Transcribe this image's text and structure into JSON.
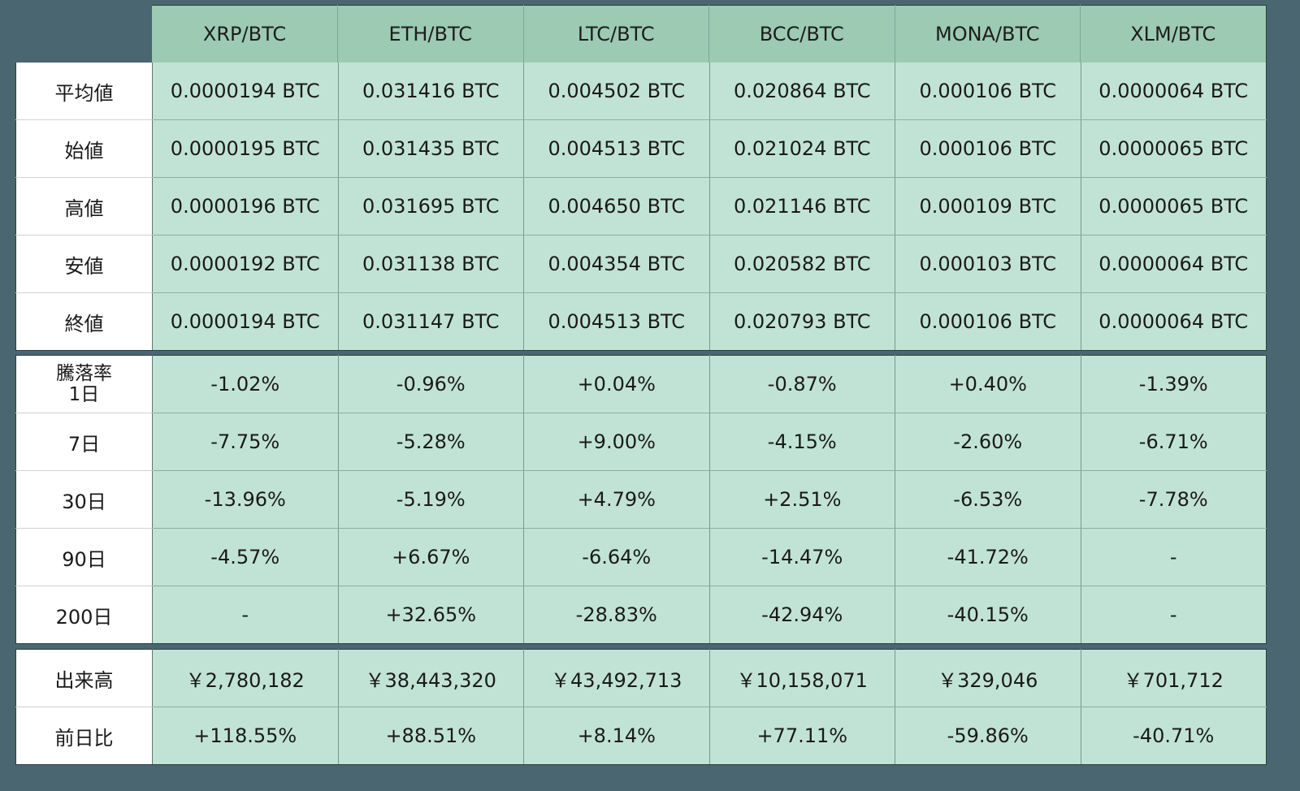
{
  "columns": [
    "XRP/BTC",
    "ETH/BTC",
    "LTC/BTC",
    "BCC/BTC",
    "MONA/BTC",
    "XLM/BTC"
  ],
  "colors": {
    "background": "#4a6670",
    "header_bg": "#9ccab3",
    "cell_bg": "#c1e3d6",
    "label_bg": "#ffffff"
  },
  "ohlc": {
    "rows": [
      {
        "label": "平均値",
        "values": [
          "0.0000194 BTC",
          "0.031416 BTC",
          "0.004502 BTC",
          "0.020864 BTC",
          "0.000106 BTC",
          "0.0000064 BTC"
        ]
      },
      {
        "label": "始値",
        "values": [
          "0.0000195 BTC",
          "0.031435 BTC",
          "0.004513 BTC",
          "0.021024 BTC",
          "0.000106 BTC",
          "0.0000065 BTC"
        ]
      },
      {
        "label": "高値",
        "values": [
          "0.0000196 BTC",
          "0.031695 BTC",
          "0.004650 BTC",
          "0.021146 BTC",
          "0.000109 BTC",
          "0.0000065 BTC"
        ]
      },
      {
        "label": "安値",
        "values": [
          "0.0000192 BTC",
          "0.031138 BTC",
          "0.004354 BTC",
          "0.020582 BTC",
          "0.000103 BTC",
          "0.0000064 BTC"
        ]
      },
      {
        "label": "終値",
        "values": [
          "0.0000194 BTC",
          "0.031147 BTC",
          "0.004513 BTC",
          "0.020793 BTC",
          "0.000106 BTC",
          "0.0000064 BTC"
        ]
      }
    ]
  },
  "change": {
    "title": "騰落率",
    "rows": [
      {
        "label": "1日",
        "values": [
          "-1.02%",
          "-0.96%",
          "+0.04%",
          "-0.87%",
          "+0.40%",
          "-1.39%"
        ]
      },
      {
        "label": "7日",
        "values": [
          "-7.75%",
          "-5.28%",
          "+9.00%",
          "-4.15%",
          "-2.60%",
          "-6.71%"
        ]
      },
      {
        "label": "30日",
        "values": [
          "-13.96%",
          "-5.19%",
          "+4.79%",
          "+2.51%",
          "-6.53%",
          "-7.78%"
        ]
      },
      {
        "label": "90日",
        "values": [
          "-4.57%",
          "+6.67%",
          "-6.64%",
          "-14.47%",
          "-41.72%",
          "-"
        ]
      },
      {
        "label": "200日",
        "values": [
          "-",
          "+32.65%",
          "-28.83%",
          "-42.94%",
          "-40.15%",
          "-"
        ]
      }
    ]
  },
  "volume": {
    "rows": [
      {
        "label": "出来高",
        "values": [
          "￥2,780,182",
          "￥38,443,320",
          "￥43,492,713",
          "￥10,158,071",
          "￥329,046",
          "￥701,712"
        ]
      },
      {
        "label": "前日比",
        "values": [
          "+118.55%",
          "+88.51%",
          "+8.14%",
          "+77.11%",
          "-59.86%",
          "-40.71%"
        ]
      }
    ]
  }
}
